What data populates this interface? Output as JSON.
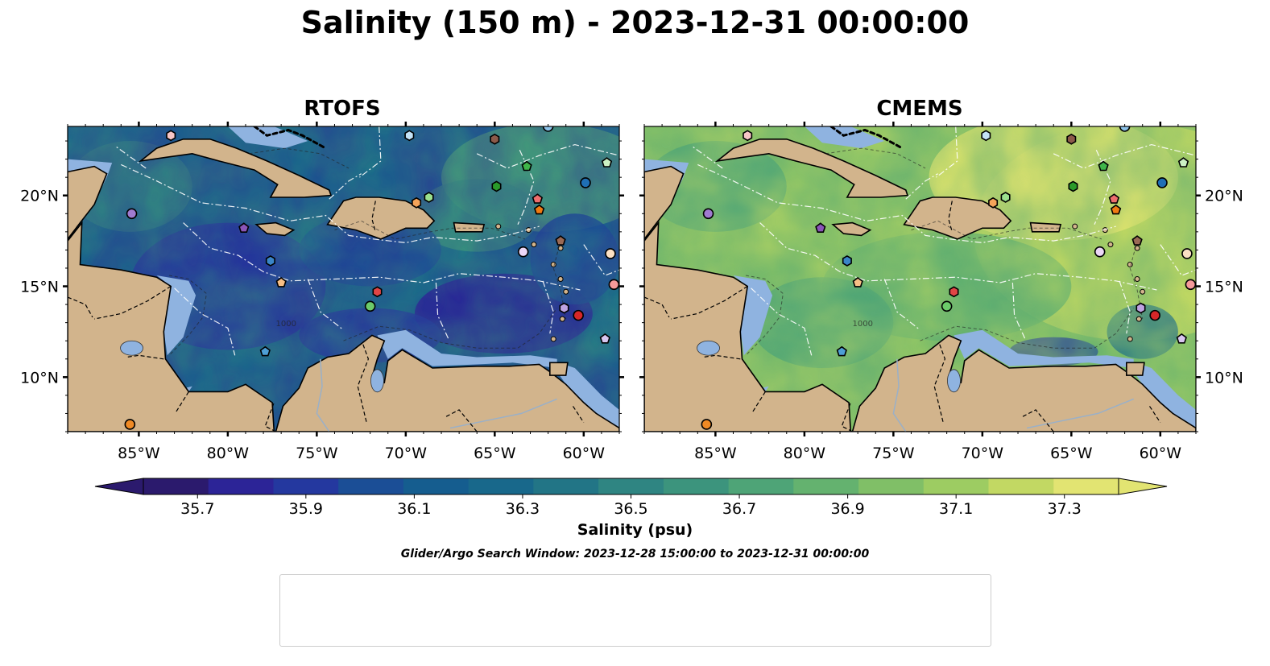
{
  "title": "Salinity (150 m) - 2023-12-31 00:00:00",
  "panels": [
    {
      "title": "RTOFS",
      "tone": "fresh"
    },
    {
      "title": "CMEMS",
      "tone": "salty"
    }
  ],
  "map": {
    "lon_range": [
      -89,
      -58
    ],
    "lat_range": [
      7,
      23.8
    ],
    "lon_ticks": [
      "85°W",
      "80°W",
      "75°W",
      "70°W",
      "65°W",
      "60°W"
    ],
    "lon_tick_values": [
      -85,
      -80,
      -75,
      -70,
      -65,
      -60
    ],
    "lat_ticks": [
      "20°N",
      "15°N",
      "10°N"
    ],
    "lat_tick_values": [
      20,
      15,
      10
    ],
    "contour_label": "1000",
    "colors": {
      "land": "#d2b48c",
      "shelf": "#8fb3e0"
    }
  },
  "colorbar": {
    "label": "Salinity (psu)",
    "min": 35.6,
    "max": 37.4,
    "tick_values": [
      35.7,
      35.9,
      36.1,
      36.3,
      36.5,
      36.7,
      36.9,
      37.1,
      37.3
    ],
    "tick_labels": [
      "35.7",
      "35.9",
      "36.1",
      "36.3",
      "36.5",
      "36.7",
      "36.9",
      "37.1",
      "37.3"
    ],
    "colors": [
      "#2b1a6d",
      "#2c2497",
      "#24389f",
      "#1b4e96",
      "#155d8f",
      "#18688b",
      "#227586",
      "#2f8582",
      "#3c947d",
      "#4ea477",
      "#64b26f",
      "#80bf67",
      "#9dcc62",
      "#c2d863",
      "#e2e472"
    ]
  },
  "search_window": "Glider/Argo Search Window: 2023-12-28 15:00:00 to 2023-12-31 00:00:00",
  "floats": [
    {
      "id": "1902313",
      "marker": "circle",
      "color": "#1f6fb5",
      "lon": -59.9,
      "lat": 20.7
    },
    {
      "id": "4901719",
      "marker": "hexagon",
      "color": "#3a85c8",
      "lon": -77.6,
      "lat": 16.4
    },
    {
      "id": "4901720",
      "marker": "pentagon",
      "color": "#4e9fd6",
      "lon": -77.9,
      "lat": 11.4
    },
    {
      "id": "4902110",
      "marker": "circle",
      "color": "#8dc3ea",
      "lon": -62.0,
      "lat": 23.8
    },
    {
      "id": "4902343",
      "marker": "hexagon",
      "color": "#c4e3f7",
      "lon": -69.8,
      "lat": 23.3
    },
    {
      "id": "4902355",
      "marker": "pentagon",
      "color": "#f07a12",
      "lon": -62.5,
      "lat": 19.2
    },
    {
      "id": "4902476",
      "marker": "circle",
      "color": "#f08a25",
      "lon": -85.5,
      "lat": 7.4
    },
    {
      "id": "4903051",
      "marker": "hexagon",
      "color": "#f5a45a",
      "lon": -69.4,
      "lat": 19.6
    },
    {
      "id": "4903186",
      "marker": "pentagon",
      "color": "#f7bf86",
      "lon": -77.0,
      "lat": 15.2
    },
    {
      "id": "4903217",
      "marker": "circle",
      "color": "#fbe0c4",
      "lon": -58.5,
      "lat": 16.8
    },
    {
      "id": "4903238",
      "marker": "hexagon",
      "color": "#2a9a2a",
      "lon": -64.9,
      "lat": 20.5
    },
    {
      "id": "4903244",
      "marker": "pentagon",
      "color": "#3fb54a",
      "lon": -63.2,
      "lat": 21.6
    },
    {
      "id": "4903250",
      "marker": "circle",
      "color": "#6ccb6a",
      "lon": -72.0,
      "lat": 13.9
    },
    {
      "id": "4903333",
      "marker": "hexagon",
      "color": "#9be08e",
      "lon": -68.7,
      "lat": 19.9
    },
    {
      "id": "4903345",
      "marker": "pentagon",
      "color": "#ccf2c4",
      "lon": -58.7,
      "lat": 21.8
    },
    {
      "id": "4903347",
      "marker": "circle",
      "color": "#d62728",
      "lon": -60.3,
      "lat": 13.4
    },
    {
      "id": "4903350",
      "marker": "hexagon",
      "color": "#e04545",
      "lon": -71.6,
      "lat": 14.7
    },
    {
      "id": "4903352",
      "marker": "pentagon",
      "color": "#ee6e6e",
      "lon": -62.6,
      "lat": 19.8
    },
    {
      "id": "4903458",
      "marker": "circle",
      "color": "#f59a9a",
      "lon": -58.3,
      "lat": 15.1
    },
    {
      "id": "4903553",
      "marker": "hexagon",
      "color": "#f8c6c6",
      "lon": -83.2,
      "lat": 23.3
    },
    {
      "id": "4903561",
      "marker": "pentagon",
      "color": "#8a55b8",
      "lon": -79.1,
      "lat": 18.2
    },
    {
      "id": "4903562",
      "marker": "circle",
      "color": "#a07bd0",
      "lon": -85.4,
      "lat": 19.0
    },
    {
      "id": "5906339",
      "marker": "hexagon",
      "color": "#bfa3e2",
      "lon": -61.1,
      "lat": 13.8
    },
    {
      "id": "6902958",
      "marker": "pentagon",
      "color": "#d8c6f0",
      "lon": -58.8,
      "lat": 12.1
    },
    {
      "id": "6903111",
      "marker": "circle",
      "color": "#ecd7f7",
      "lon": -63.4,
      "lat": 16.9
    },
    {
      "id": "6903727",
      "marker": "hexagon",
      "color": "#8c5a4a",
      "lon": -65.0,
      "lat": 23.1
    },
    {
      "id": "6904223",
      "marker": "pentagon",
      "color": "#9a6a55",
      "lon": -61.3,
      "lat": 17.5
    }
  ]
}
